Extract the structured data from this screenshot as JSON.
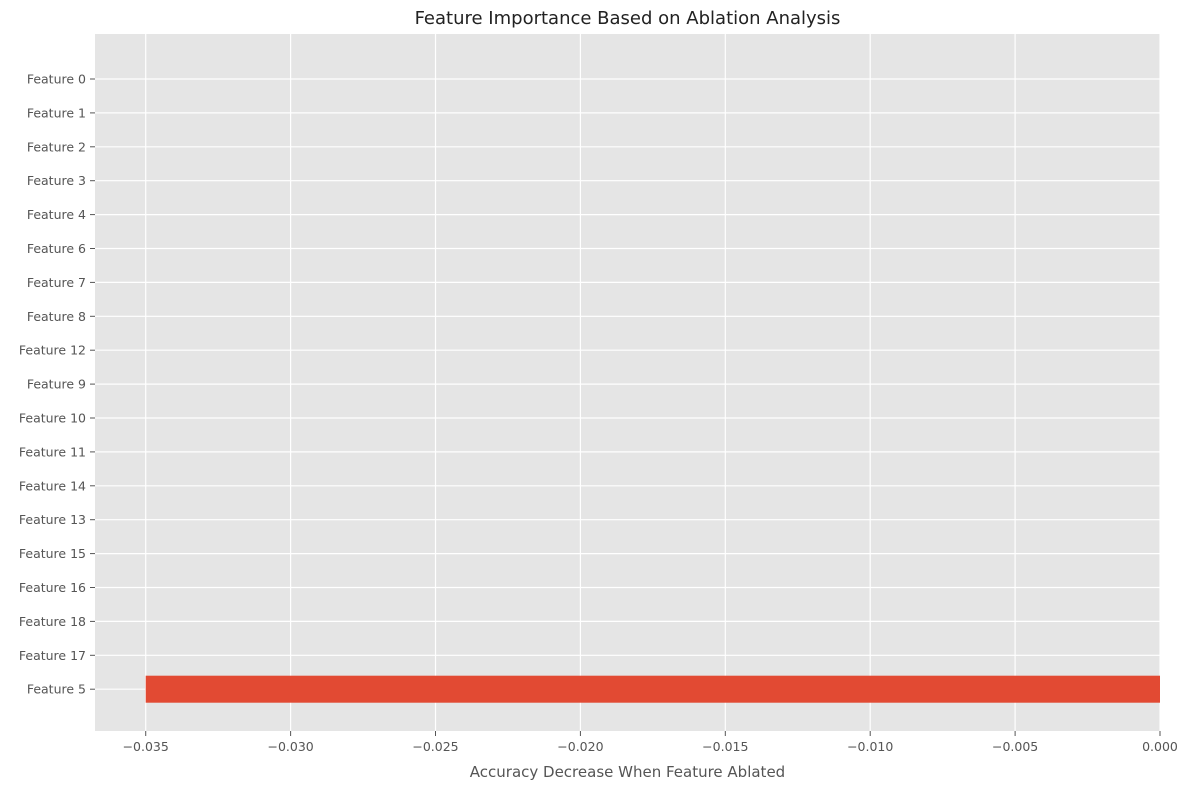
{
  "chart_data": {
    "type": "bar",
    "orientation": "horizontal",
    "title": "Feature Importance Based on Ablation Analysis",
    "xlabel": "Accuracy Decrease When Feature Ablated",
    "ylabel": "",
    "categories": [
      "Feature 0",
      "Feature 1",
      "Feature 2",
      "Feature 3",
      "Feature 4",
      "Feature 6",
      "Feature 7",
      "Feature 8",
      "Feature 12",
      "Feature 9",
      "Feature 10",
      "Feature 11",
      "Feature 14",
      "Feature 13",
      "Feature 15",
      "Feature 16",
      "Feature 18",
      "Feature 17",
      "Feature 5"
    ],
    "values": [
      0,
      0,
      0,
      0,
      0,
      0,
      0,
      0,
      0,
      0,
      0,
      0,
      0,
      0,
      0,
      0,
      0,
      0,
      -0.035
    ],
    "xlim": [
      -0.03675,
      0
    ],
    "xticks": [
      -0.035,
      -0.03,
      -0.025,
      -0.02,
      -0.015,
      -0.01,
      -0.005,
      0
    ],
    "xtick_labels": [
      "−0.035",
      "−0.030",
      "−0.025",
      "−0.020",
      "−0.015",
      "−0.010",
      "−0.005",
      "0.000"
    ],
    "grid": true,
    "legend": "none",
    "colors": {
      "bar": "#E24A33",
      "background": "#E5E5E5",
      "grid": "#FFFFFF"
    }
  }
}
